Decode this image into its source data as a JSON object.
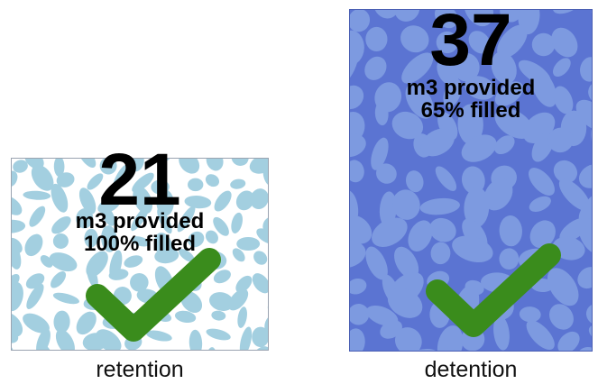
{
  "retention": {
    "volume": "21",
    "provided_label": "m3 provided",
    "filled_label": "100% filled",
    "caption": "retention",
    "fill_fraction": 1.0,
    "colors": {
      "background": "#ffffff",
      "stones": "#a3cfe0",
      "border": "#9aa3b0"
    }
  },
  "detention": {
    "volume": "37",
    "provided_label": "m3 provided",
    "filled_label": "65% filled",
    "caption": "detention",
    "fill_fraction": 0.65,
    "colors": {
      "background": "#5b74d2",
      "stones": "#7d9ae0",
      "border": "#4a5fb3"
    }
  },
  "checkmark": {
    "icon": "checkmark-icon",
    "color": "#3a8c1c"
  }
}
